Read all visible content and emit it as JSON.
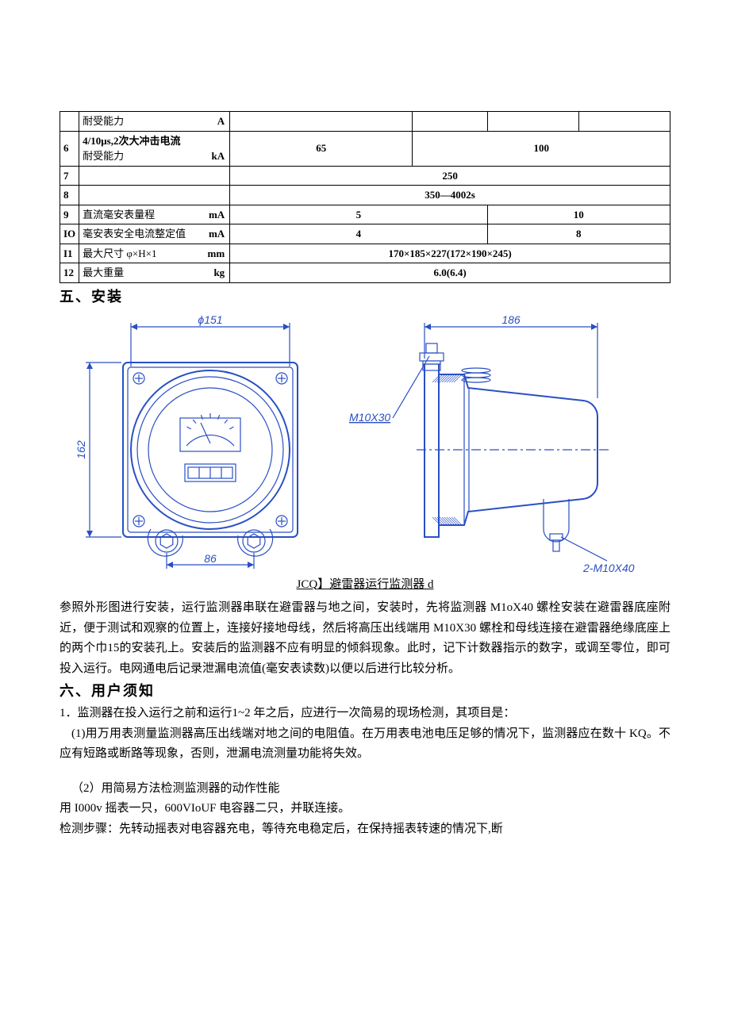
{
  "table": {
    "rows": [
      {
        "num": "",
        "desc": "耐受能力",
        "unit": "A",
        "vals": [
          "",
          "",
          "",
          ""
        ],
        "spans": [
          1,
          1,
          1,
          1
        ]
      },
      {
        "num": "6",
        "desc": "4/10μs,2次大冲击电流\n耐受能力",
        "unit": "kA",
        "vals": [
          "65",
          "100"
        ],
        "spans": [
          1,
          3
        ]
      },
      {
        "num": "7",
        "desc": "",
        "unit": "",
        "vals": [
          "250"
        ],
        "spans": [
          4
        ]
      },
      {
        "num": "8",
        "desc": "",
        "unit": "",
        "vals": [
          "350—4002s"
        ],
        "spans": [
          4
        ]
      },
      {
        "num": "9",
        "desc": "直流毫安表量程",
        "unit": "mA",
        "vals": [
          "5",
          "10"
        ],
        "spans": [
          2,
          2
        ]
      },
      {
        "num": "IO",
        "desc": "毫安表安全电流整定值",
        "unit": "mA",
        "vals": [
          "4",
          "8"
        ],
        "spans": [
          2,
          2
        ]
      },
      {
        "num": "I1",
        "desc": "最大尺寸 φ×H×1",
        "unit": "mm",
        "vals": [
          "170×185×227(172×190×245)"
        ],
        "spans": [
          4
        ]
      },
      {
        "num": "12",
        "desc": "最大重量",
        "unit": "kg",
        "vals": [
          "6.0(6.4)"
        ],
        "spans": [
          4
        ]
      }
    ]
  },
  "sections": {
    "install_header": "五、安装",
    "user_header": "六、用户须知"
  },
  "diagram": {
    "stroke": "#2a4fc4",
    "labels": {
      "phi": "ϕ151",
      "right_w": "186",
      "left_h": "162",
      "bottom_w": "86",
      "bolt1": "M10X30",
      "bolt2": "2-M10X40"
    }
  },
  "caption": "JCQ】避雷器运行监测器 d",
  "paragraphs": {
    "install": "参照外形图进行安装，运行监测器串联在避雷器与地之间，安装时，先将监测器 M1oX40 螺栓安装在避雷器底座附近，便于测试和观察的位置上，连接好接地母线，然后将高压出线端用 M10X30 螺栓和母线连接在避雷器绝缘底座上的两个巾15的安装孔上。安装后的监测器不应有明显的倾斜现象。此时，记下计数器指示的数字，或调至零位，即可投入运行。电网通电后记录泄漏电流值(毫安表读数)以便以后进行比较分析。",
    "user1": "1．监测器在投入运行之前和运行1~2 年之后，应进行一次简易的现场检测，其项目是：",
    "user1a": "(1)用万用表测量监测器高压出线端对地之间的电阻值。在万用表电池电压足够的情况下，监测器应在数十 KQ。不应有短路或断路等现象，否则，泄漏电流测量功能将失效。",
    "user2": "（2）用简易方法检测监测器的动作性能",
    "user2a": "用 I000v 摇表一只，600VIoUF 电容器二只，并联连接。",
    "user2b": "检测步骤：先转动摇表对电容器充电，等待充电稳定后，在保持摇表转速的情况下,断"
  }
}
